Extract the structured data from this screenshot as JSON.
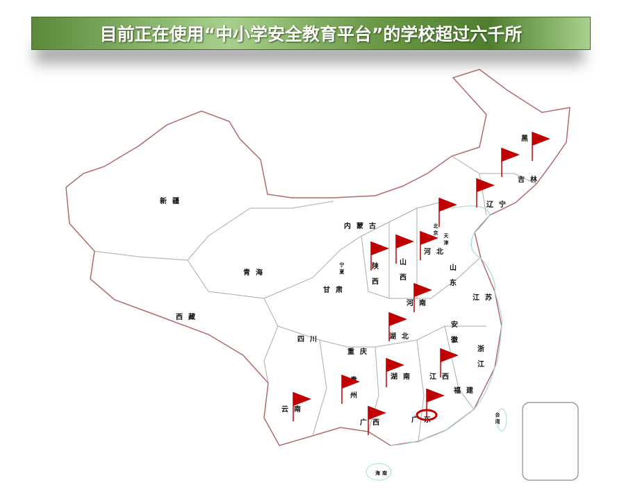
{
  "title": "目前正在使用“中小学安全教育平台”的学校超过六千所",
  "colors": {
    "border": "#b06a6a",
    "inner_border": "#aaaaaa",
    "coast": "#a8d8d8",
    "flag": "#c00000",
    "banner": "#6d9b4a"
  },
  "provinces": [
    "黑龙",
    "吉林",
    "辽宁",
    "北京",
    "天津",
    "河北",
    "山东",
    "内蒙古",
    "新疆",
    "青海",
    "西藏",
    "甘肃",
    "宁夏",
    "陕西",
    "山西",
    "河南",
    "江苏",
    "安徽",
    "湖北",
    "浙江",
    "四川",
    "重庆",
    "贵州",
    "湖南",
    "江西",
    "福建",
    "云南",
    "广西",
    "广东",
    "台湾",
    "海南"
  ],
  "flagged_provinces": [
    "黑龙",
    "吉林",
    "辽宁",
    "北京",
    "河北",
    "山西",
    "陕西",
    "河南",
    "湖北",
    "江西",
    "湖南",
    "贵州",
    "云南",
    "广西",
    "广东"
  ],
  "icon": "red-flag-icon"
}
